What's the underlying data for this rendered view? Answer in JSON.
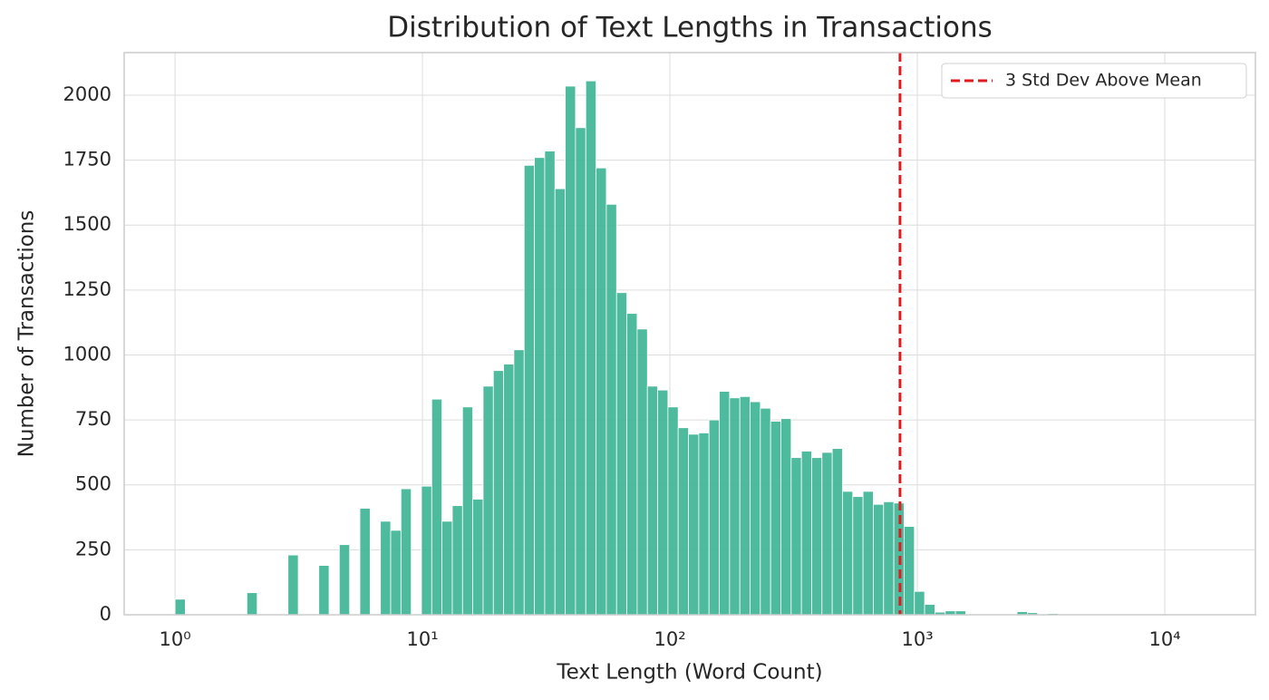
{
  "chart_data": {
    "type": "histogram",
    "title": "Distribution of Text Lengths in Transactions",
    "x_label": "Text Length (Word Count)",
    "y_label": "Number of Transactions",
    "xscale": "log",
    "color": "#3cb493",
    "bins": [
      1,
      1.1,
      1.211,
      1.332,
      1.466,
      1.613,
      1.774,
      1.952,
      2.148,
      2.363,
      2.6,
      2.861,
      3.148,
      3.463,
      3.811,
      4.193,
      4.613,
      5.076,
      5.585,
      6.145,
      6.761,
      7.439,
      8.185,
      9.006,
      9.908,
      10.9,
      11.99,
      13.2,
      14.52,
      15.97,
      17.58,
      19.34,
      21.28,
      23.41,
      25.76,
      28.34,
      31.19,
      34.31,
      37.76,
      41.54,
      45.71,
      50.29,
      55.34,
      60.89,
      66.99,
      73.71,
      81.1,
      89.24,
      98.17,
      108,
      118.9,
      130.8,
      143.9,
      158.3,
      174.2,
      191.7,
      210.9,
      232,
      255.3,
      280.9,
      309,
      340.1,
      374.1,
      411.6,
      452.9,
      498.3,
      548.3,
      603.3,
      663.7,
      730.3,
      803.5,
      884.1,
      972.8,
      1070,
      1178,
      1296,
      1426,
      1569,
      1726,
      1899,
      2089,
      2299,
      2529,
      2783,
      3062,
      3369,
      3707
    ],
    "values": [
      60,
      0,
      0,
      0,
      0,
      0,
      0,
      85,
      0,
      0,
      0,
      230,
      0,
      0,
      190,
      0,
      270,
      0,
      410,
      0,
      360,
      325,
      485,
      0,
      495,
      830,
      360,
      420,
      800,
      445,
      880,
      940,
      965,
      1020,
      1730,
      1760,
      1785,
      1640,
      2035,
      1875,
      2055,
      1720,
      1580,
      1240,
      1160,
      1100,
      880,
      865,
      800,
      720,
      695,
      700,
      750,
      860,
      835,
      840,
      820,
      795,
      745,
      755,
      605,
      630,
      605,
      625,
      640,
      475,
      455,
      475,
      425,
      435,
      430,
      340,
      90,
      40,
      10,
      15,
      15,
      3,
      2,
      2,
      0,
      3,
      12,
      8,
      2,
      5
    ],
    "xlim": [
      0.623,
      23240
    ],
    "ylim": [
      0,
      2164
    ],
    "xticks": [
      {
        "value": 1,
        "label": "10⁰"
      },
      {
        "value": 10,
        "label": "10¹"
      },
      {
        "value": 100,
        "label": "10²"
      },
      {
        "value": 1000,
        "label": "10³"
      },
      {
        "value": 10000,
        "label": "10⁴"
      }
    ],
    "yticks": [
      0,
      250,
      500,
      750,
      1000,
      1250,
      1500,
      1750,
      2000
    ],
    "grid": true,
    "vlines": [
      {
        "x": 851,
        "label": "3 Std Dev Above Mean",
        "color": "#e31a1c",
        "style": "dashed"
      }
    ],
    "legend_position": "upper right"
  }
}
